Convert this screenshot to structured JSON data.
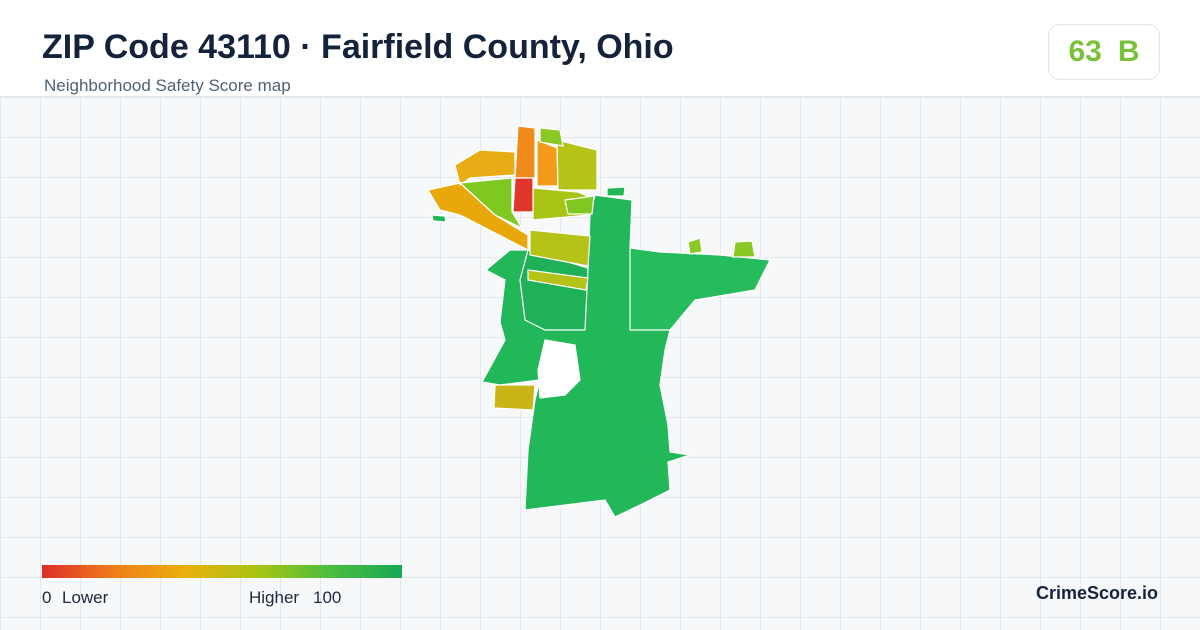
{
  "header": {
    "title": "ZIP Code 43110 · Fairfield County, Ohio",
    "subtitle": "Neighborhood Safety Score map"
  },
  "score": {
    "value": 63,
    "grade": "B"
  },
  "legend": {
    "min": 0,
    "min_label": "Lower",
    "max_label": "Higher",
    "max": 100,
    "colors": [
      "#dc2f2a",
      "#f07d1a",
      "#e9b00c",
      "#a8c414",
      "#4cbd3e",
      "#16a955"
    ]
  },
  "brand": "CrimeScore.io"
}
